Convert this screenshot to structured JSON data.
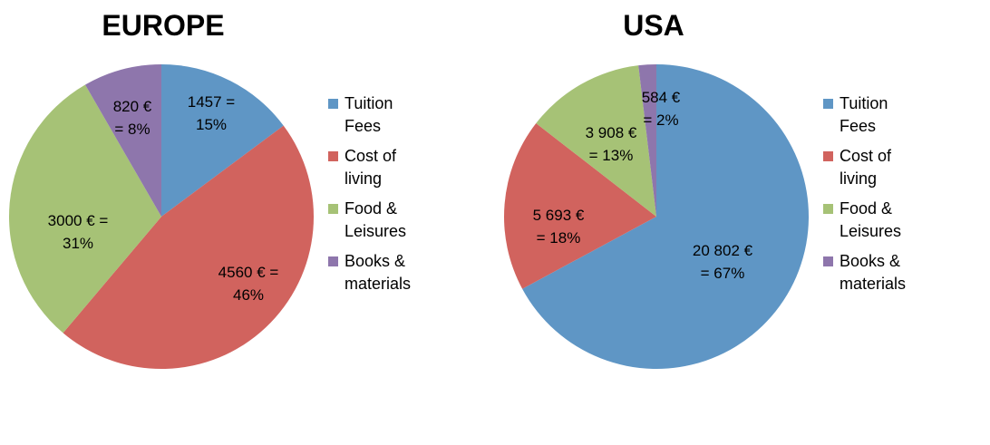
{
  "chart_data": [
    {
      "type": "pie",
      "title": "EUROPE",
      "categories": [
        "Tuition\nFees",
        "Cost of\nliving",
        "Food &\nLeisures",
        "Books &\nmaterials"
      ],
      "values": [
        1457,
        4560,
        3000,
        820
      ],
      "labels": [
        [
          "1457 =",
          "15%"
        ],
        [
          "4560 € =",
          "46%"
        ],
        [
          "3000 € =",
          "31%"
        ],
        [
          "820 €",
          "= 8%"
        ]
      ],
      "legend_position": "right"
    },
    {
      "type": "pie",
      "title": "USA",
      "categories": [
        "Tuition\nFees",
        "Cost of\nliving",
        "Food &\nLeisures",
        "Books &\nmaterials"
      ],
      "values": [
        20802,
        5693,
        3908,
        584
      ],
      "labels": [
        [
          "20 802 €",
          "= 67%"
        ],
        [
          "5 693 €",
          "= 18%"
        ],
        [
          "3 908 €",
          "= 13%"
        ],
        [
          "584 €",
          "= 2%"
        ]
      ],
      "legend_position": "right"
    }
  ],
  "colors": [
    "#5f96c5",
    "#d1635e",
    "#a6c276",
    "#8e76ac"
  ]
}
